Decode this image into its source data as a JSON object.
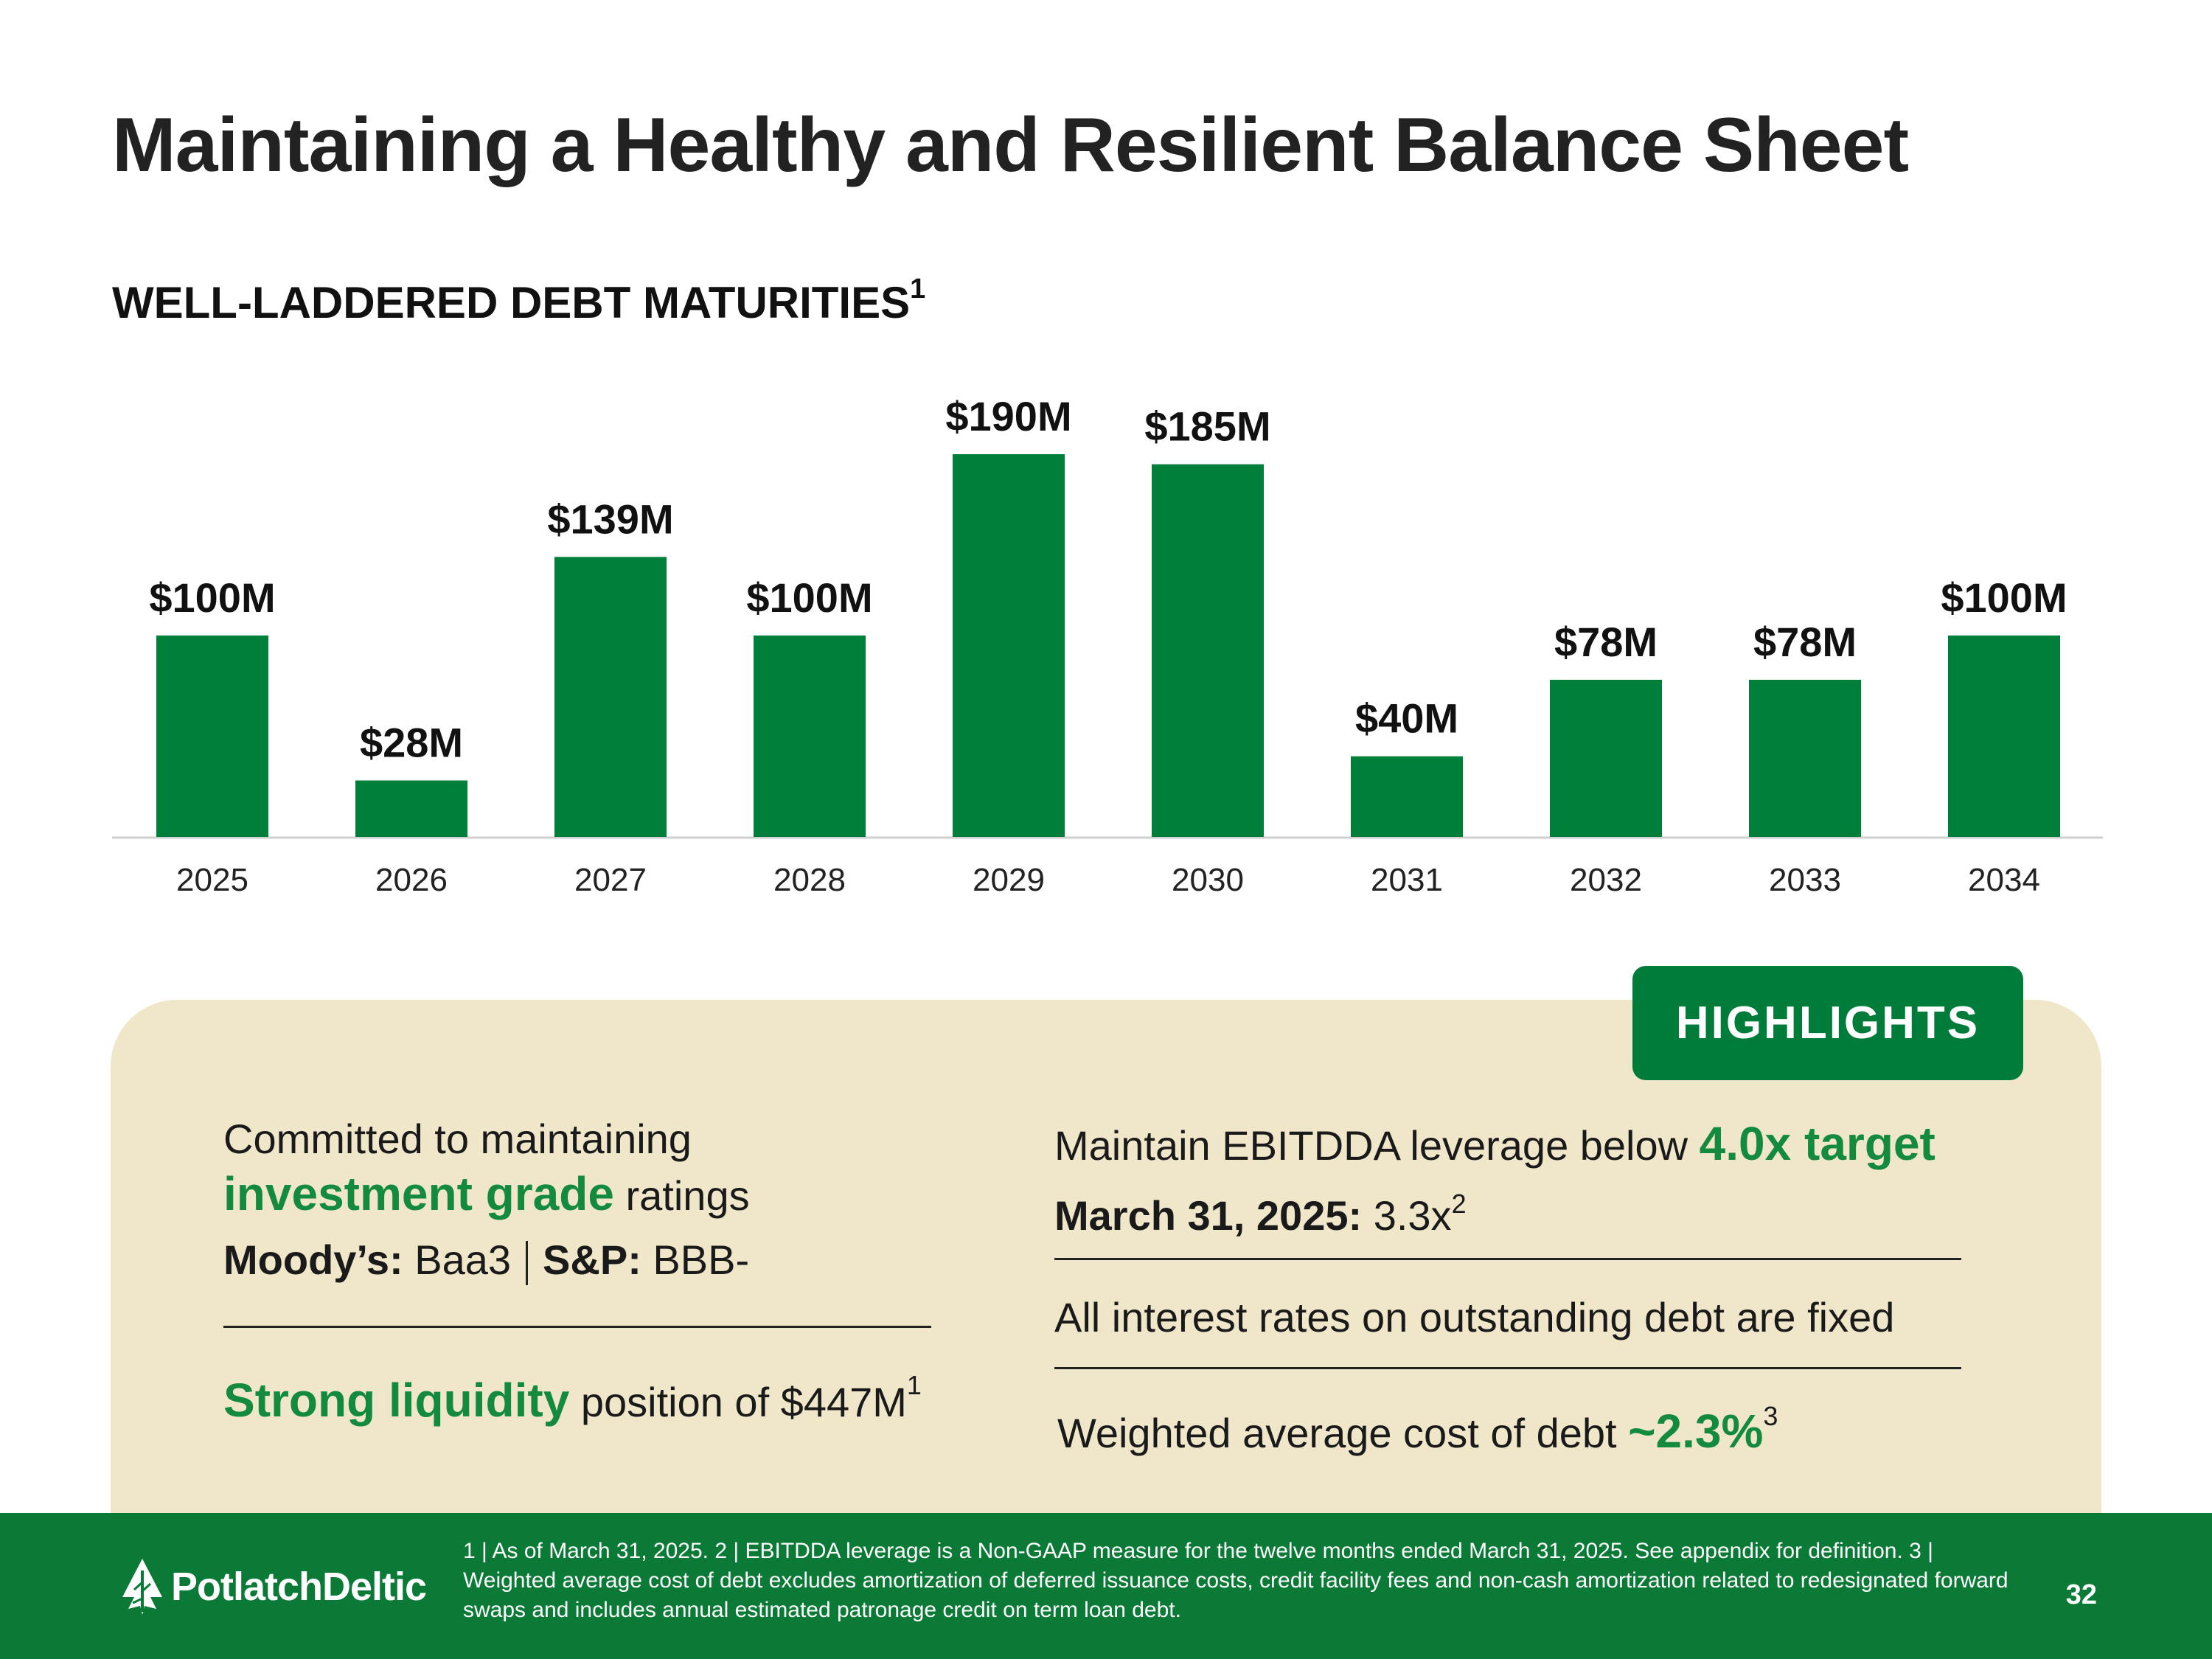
{
  "title": "Maintaining a Healthy and Resilient Balance Sheet",
  "subtitle": "WELL-LADDERED DEBT MATURITIES",
  "subtitle_sup": "1",
  "colors": {
    "bar": "#007f3a",
    "accent": "#138a3e",
    "panel": "#f0e7cb",
    "footer": "#0a7a36"
  },
  "chart_data": {
    "type": "bar",
    "title": "WELL-LADDERED DEBT MATURITIES",
    "categories": [
      "2025",
      "2026",
      "2027",
      "2028",
      "2029",
      "2030",
      "2031",
      "2032",
      "2033",
      "2034"
    ],
    "values": [
      100,
      28,
      139,
      100,
      190,
      185,
      40,
      78,
      78,
      100
    ],
    "labels": [
      "$100M",
      "$28M",
      "$139M",
      "$100M",
      "$190M",
      "$185M",
      "$40M",
      "$78M",
      "$78M",
      "$100M"
    ],
    "unit": "$M",
    "xlabel": "",
    "ylabel": "",
    "ylim": [
      0,
      190
    ],
    "grid": false
  },
  "highlights": {
    "badge": "HIGHLIGHTS",
    "left": {
      "line1": "Committed to maintaining",
      "line2_green": "investment grade",
      "line2_rest": "ratings",
      "moodys_label": "Moody’s:",
      "moodys_value": "Baa3",
      "sp_label": "S&P:",
      "sp_value": "BBB-",
      "liquidity_green": "Strong liquidity",
      "liquidity_rest": "position of $447M",
      "liquidity_sup": "1"
    },
    "right": {
      "ebitdda_text": "Maintain EBITDDA leverage below",
      "ebitdda_green": "4.0x target",
      "date_label": "March 31, 2025:",
      "date_value": "3.3x",
      "date_sup": "2",
      "fixed_text": "All interest rates on outstanding debt are fixed",
      "wacd_text": "Weighted average cost of debt",
      "wacd_green": "~2.3%",
      "wacd_sup": "3"
    }
  },
  "footer": {
    "logo_text": "PotlatchDeltic",
    "footnote": "1 | As of March 31, 2025.  2 | EBITDDA leverage is a Non-GAAP measure for the twelve months ended March 31, 2025. See appendix for definition.  3 | Weighted average cost of debt excludes amortization of deferred issuance costs, credit facility fees and non-cash amortization related to redesignated forward swaps and includes annual estimated patronage credit on term loan debt.",
    "page_number": "32"
  }
}
